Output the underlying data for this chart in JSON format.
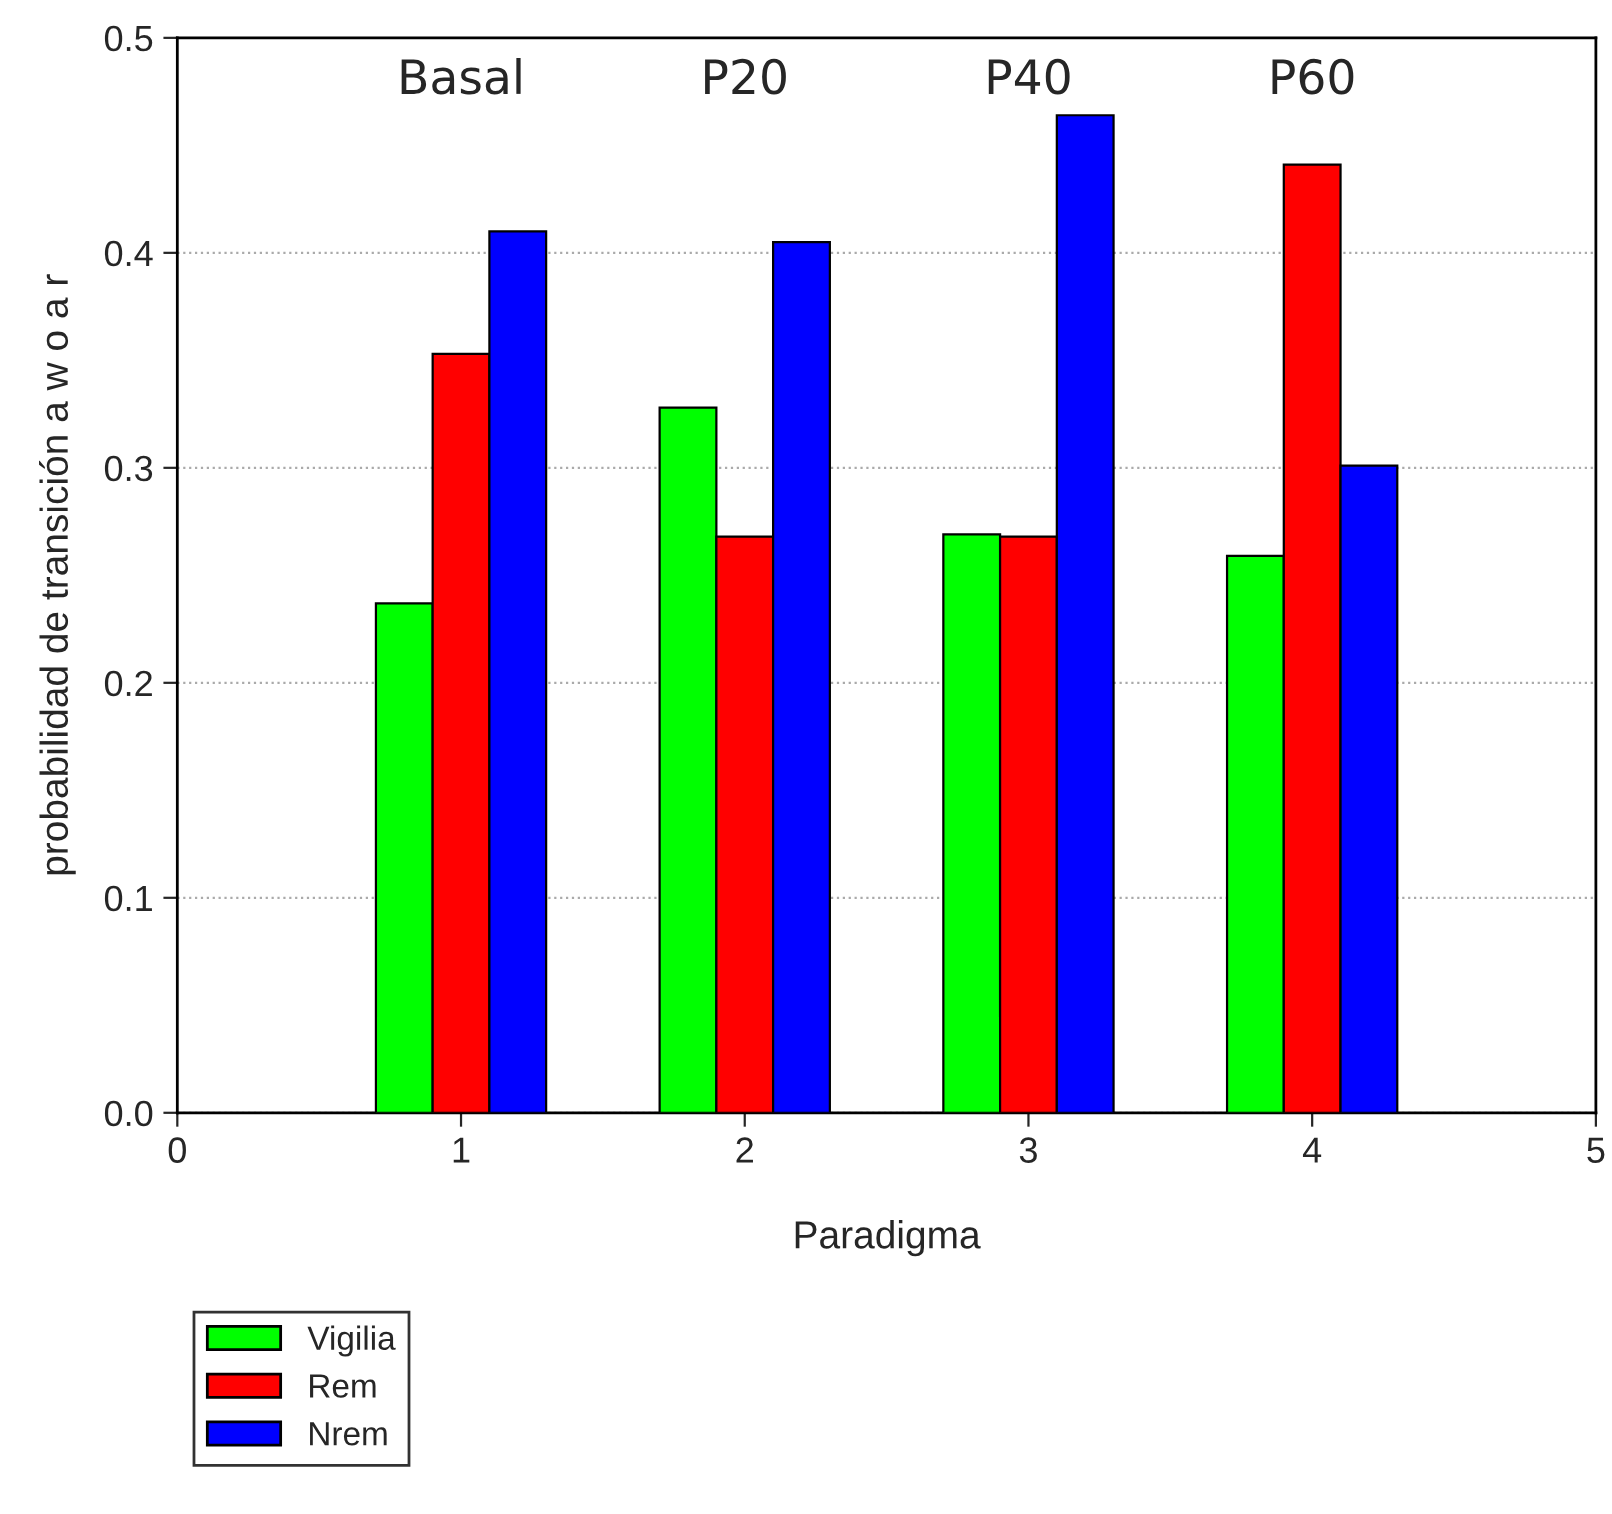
{
  "chart_data": {
    "type": "bar",
    "xlabel": "Paradigma",
    "ylabel": "probabilidad de transición a w o a r",
    "x": [
      1,
      2,
      3,
      4
    ],
    "xlim": [
      0,
      5
    ],
    "xticks": [
      0,
      1,
      2,
      3,
      4,
      5
    ],
    "ylim": [
      0,
      0.5
    ],
    "yticks": [
      {
        "value": 0,
        "label": "0.0"
      },
      0.1,
      0.2,
      0.3,
      0.4,
      0.5
    ],
    "grid": "y",
    "legend": "bottom left",
    "series": [
      {
        "name": "Vigilia",
        "color": "#00ff00",
        "values": [
          0.237,
          0.328,
          0.269,
          0.259
        ]
      },
      {
        "name": "Rem",
        "color": "#ff0000",
        "values": [
          0.353,
          0.268,
          0.268,
          0.441
        ]
      },
      {
        "name": "Nrem",
        "color": "#0000ff",
        "values": [
          0.41,
          0.405,
          0.464,
          0.301
        ]
      }
    ],
    "annotations": [
      "Basal",
      "P20",
      "P40",
      "P60"
    ]
  }
}
